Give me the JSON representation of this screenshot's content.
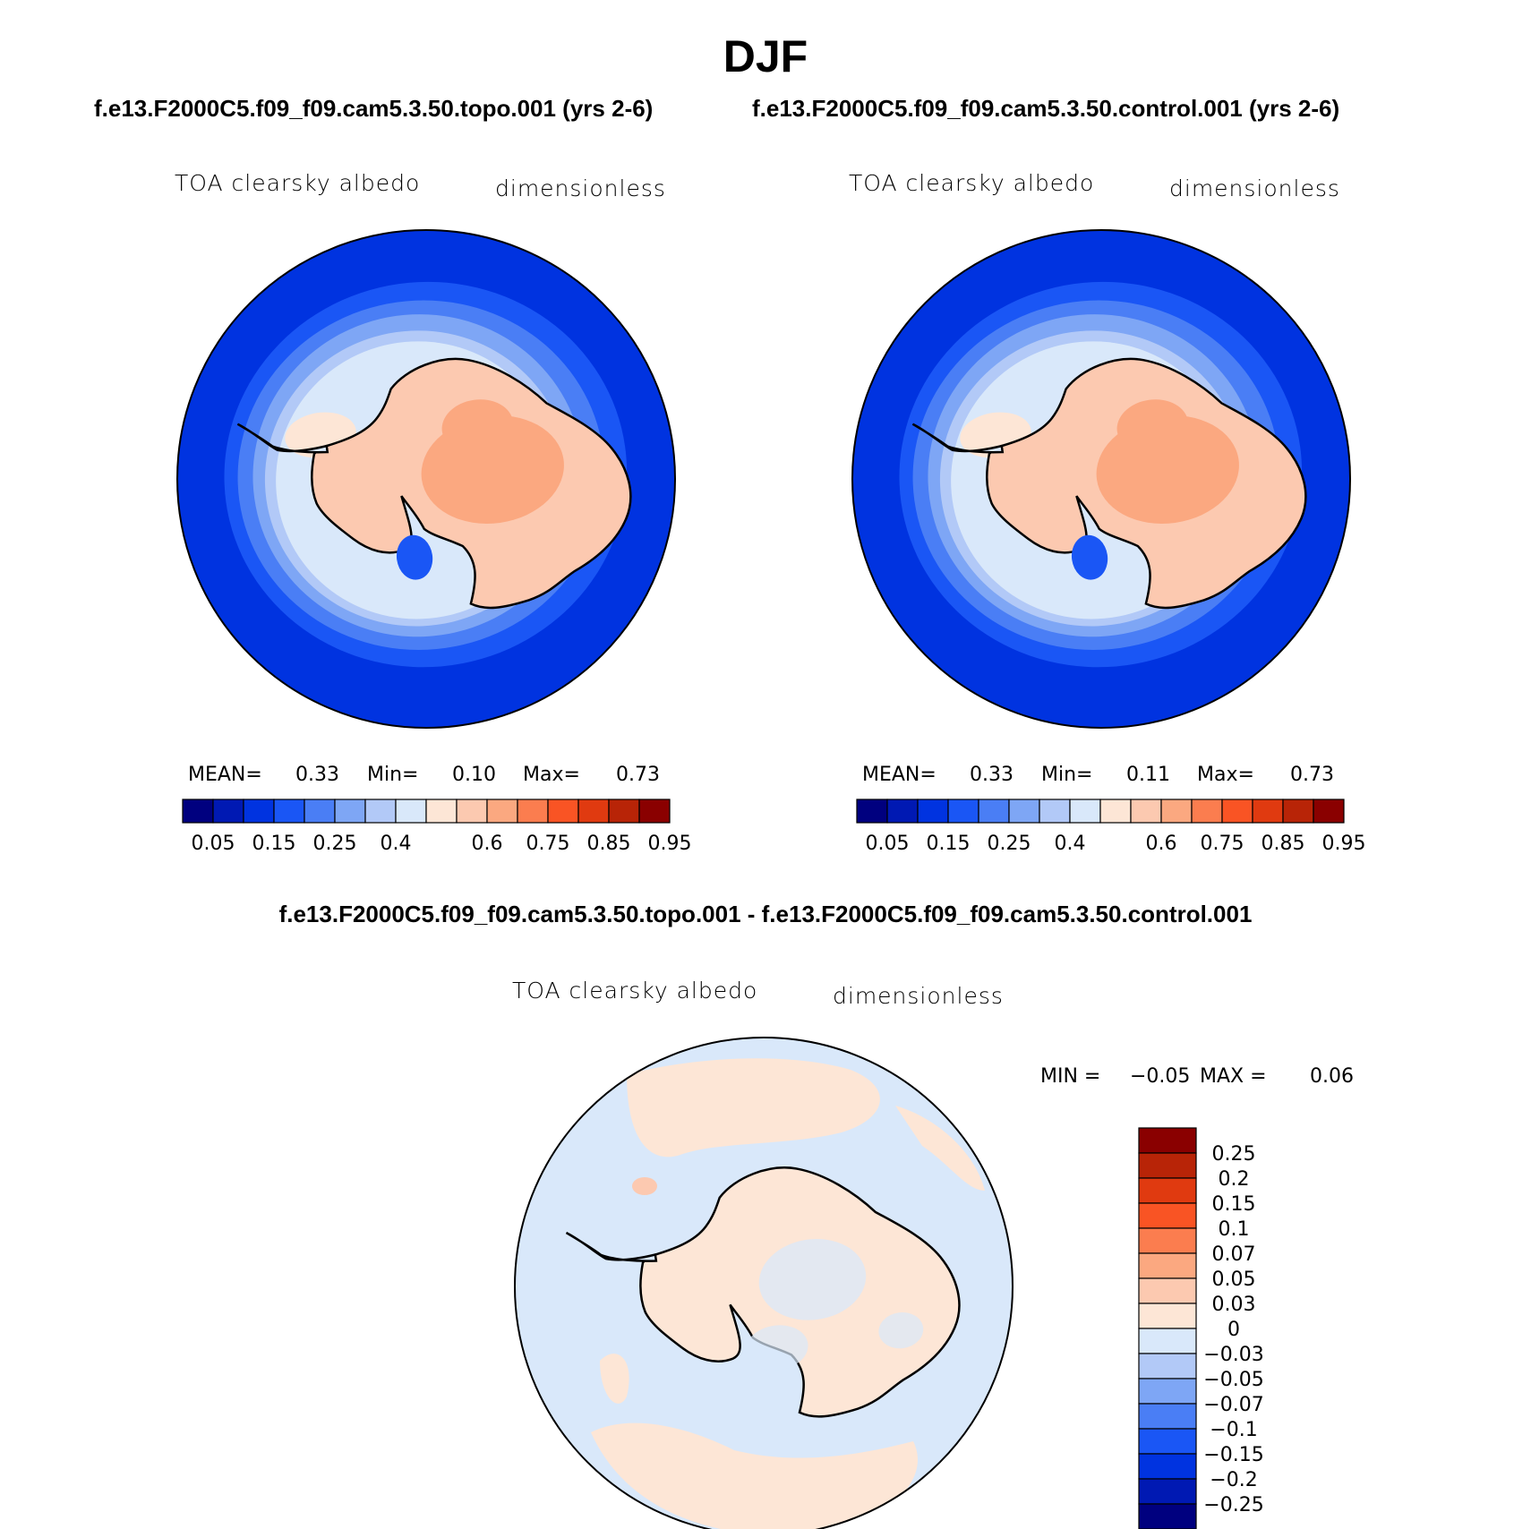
{
  "main_title": "DJF",
  "case_titles": {
    "left": "f.e13.F2000C5.f09_f09.cam5.3.50.topo.001 (yrs 2-6)",
    "right": "f.e13.F2000C5.f09_f09.cam5.3.50.control.001 (yrs 2-6)"
  },
  "diff_title": "f.e13.F2000C5.f09_f09.cam5.3.50.topo.001 - f.e13.F2000C5.f09_f09.cam5.3.50.control.001",
  "panels": [
    {
      "variable": "TOA clearsky albedo",
      "units": "dimensionless",
      "mean_label": "MEAN=",
      "mean": "0.33",
      "min_label": "Min=",
      "min": "0.10",
      "max_label": "Max=",
      "max": "0.73"
    },
    {
      "variable": "TOA clearsky albedo",
      "units": "dimensionless",
      "mean_label": "MEAN=",
      "mean": "0.33",
      "min_label": "Min=",
      "min": "0.11",
      "max_label": "Max=",
      "max": "0.73"
    }
  ],
  "diff_panel": {
    "variable": "TOA clearsky albedo",
    "units": "dimensionless",
    "min_label": "MIN =",
    "min": "−0.05",
    "max_label": "MAX =",
    "max": "0.06"
  },
  "colorbar_main": {
    "colors": [
      "#00007f",
      "#0019b3",
      "#0033e0",
      "#1a56f5",
      "#4a7ef5",
      "#7ea6f5",
      "#b2c9f7",
      "#d9e8fa",
      "#fde6d6",
      "#fcc9b0",
      "#fba880",
      "#fb7d4f",
      "#f95424",
      "#e03a10",
      "#b82407",
      "#8a0000"
    ],
    "labels": [
      "0.05",
      "0.15",
      "0.25",
      "0.4",
      "0.6",
      "0.75",
      "0.85",
      "0.95"
    ]
  },
  "colorbar_diff": {
    "colors": [
      "#8a0000",
      "#b82407",
      "#e03a10",
      "#f95424",
      "#fb7d4f",
      "#fba880",
      "#fcc9b0",
      "#fde6d6",
      "#d9e8fa",
      "#b2c9f7",
      "#7ea6f5",
      "#4a7ef5",
      "#1a56f5",
      "#0033e0",
      "#0019b3",
      "#00007f"
    ],
    "labels": [
      "0.25",
      "0.2",
      "0.15",
      "0.1",
      "0.07",
      "0.05",
      "0.03",
      "0",
      "−0.03",
      "−0.05",
      "−0.07",
      "−0.1",
      "−0.15",
      "−0.2",
      "−0.25"
    ]
  },
  "map_colors": {
    "ocean": "#0033e0",
    "band1": "#1a56f5",
    "band2": "#4a7ef5",
    "band3": "#7ea6f5",
    "band4": "#b2c9f7",
    "band5": "#d9e8fa",
    "ice_light": "#fde6d6",
    "ice": "#fcc9b0",
    "ice_dark": "#fba880",
    "diff_bg": "#d9e8fa",
    "diff_pos": "#fde6d6",
    "diff_pos2": "#fcc9b0"
  }
}
